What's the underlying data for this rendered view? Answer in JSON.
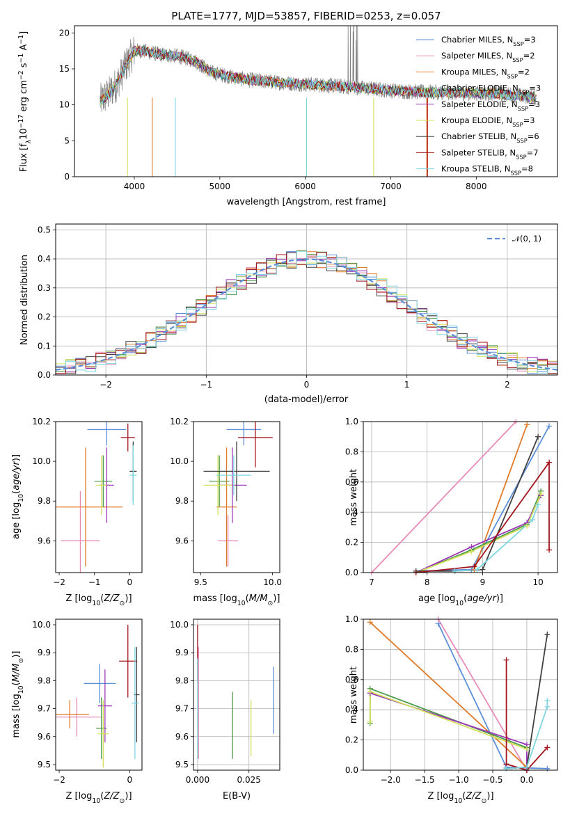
{
  "chart_data": [
    {
      "id": "spectrum",
      "type": "line",
      "title": "PLATE=1777, MJD=53857, FIBERID=0253, z=0.057",
      "xlabel": "wavelength [Angstrom, rest frame]",
      "ylabel": "Flux [f_λ10^-17 erg cm^-2 s^-1 A^-1]",
      "xlim": [
        3300,
        8950
      ],
      "ylim": [
        0,
        21
      ],
      "xticks": [
        4000,
        5000,
        6000,
        7000,
        8000
      ],
      "yticks": [
        0,
        5,
        10,
        15,
        20
      ],
      "grid": false,
      "legend": "top-right",
      "continuum_x": [
        3600,
        3700,
        3800,
        3900,
        4000,
        4100,
        4300,
        4500,
        4700,
        4900,
        5100,
        5300,
        5500,
        5800,
        6100,
        6400,
        6700,
        7000,
        7300,
        7600,
        7900,
        8200,
        8500,
        8700
      ],
      "continuum_y": [
        10.5,
        11.5,
        13.0,
        15.5,
        17.5,
        17.5,
        17.0,
        16.8,
        16.2,
        14.5,
        14.0,
        13.5,
        13.3,
        13.0,
        12.8,
        12.6,
        12.3,
        12.0,
        11.8,
        11.7,
        11.6,
        11.6,
        11.3,
        11.0
      ],
      "series": [
        {
          "name": "Chabrier MILES, N_SSP=3",
          "color": "#5b8fd9"
        },
        {
          "name": "Salpeter MILES, N_SSP=2",
          "color": "#e88bb8"
        },
        {
          "name": "Kroupa MILES, N_SSP=2",
          "color": "#e07b2a"
        },
        {
          "name": "Chabrier ELODIE, N_SSP=3",
          "color": "#4c9a4c"
        },
        {
          "name": "Salpeter ELODIE, N_SSP=3",
          "color": "#9b37b9"
        },
        {
          "name": "Kroupa ELODIE, N_SSP=3",
          "color": "#d3e05a"
        },
        {
          "name": "Chabrier STELIB, N_SSP=6",
          "color": "#404040"
        },
        {
          "name": "Salpeter STELIB, N_SSP=7",
          "color": "#a3141c"
        },
        {
          "name": "Kroupa STELIB, N_SSP=8",
          "color": "#7ed6e0"
        }
      ]
    },
    {
      "id": "residuals",
      "type": "bar",
      "xlabel": "(data-model)/error",
      "ylabel": "Normed distribution",
      "xlim": [
        -2.5,
        2.5
      ],
      "ylim": [
        0,
        0.52
      ],
      "xticks": [
        -2,
        -1,
        0,
        1,
        2
      ],
      "yticks": [
        0.0,
        0.1,
        0.2,
        0.3,
        0.4,
        0.5
      ],
      "grid": true,
      "legend": "top-right",
      "reference_label": "𝒩(0, 1)",
      "reference_color": "#5b8fd9",
      "bins_start": -2.5,
      "bin_width": 0.1
    },
    {
      "id": "age-vs-Z",
      "type": "scatter",
      "xlabel": "Z [log10(Z/Z⊙)]",
      "ylabel": "age  [log10(age/yr)]",
      "xlim": [
        -2.1,
        0.35
      ],
      "ylim": [
        9.44,
        10.2
      ],
      "xticks": [
        -2,
        -1,
        0
      ],
      "yticks": [
        9.6,
        9.8,
        10.0,
        10.2
      ],
      "points": [
        {
          "x": -0.65,
          "y": 10.16,
          "xerr": 0.55,
          "yerr": 0.08,
          "color": "#5b8fd9"
        },
        {
          "x": -1.4,
          "y": 9.6,
          "xerr": 0.55,
          "yerr": 0.25,
          "color": "#e88bb8"
        },
        {
          "x": -1.25,
          "y": 9.77,
          "xerr": 1.05,
          "yerr": 0.3,
          "color": "#e07b2a"
        },
        {
          "x": -0.75,
          "y": 9.9,
          "xerr": 0.25,
          "yerr": 0.13,
          "color": "#4c9a4c"
        },
        {
          "x": -0.65,
          "y": 9.88,
          "xerr": 0.2,
          "yerr": 0.19,
          "color": "#9b37b9"
        },
        {
          "x": -0.8,
          "y": 9.88,
          "xerr": 0.15,
          "yerr": 0.15,
          "color": "#d3e05a"
        },
        {
          "x": 0.1,
          "y": 9.95,
          "xerr": 0.1,
          "yerr": 0.15,
          "color": "#404040"
        },
        {
          "x": -0.05,
          "y": 10.12,
          "xerr": 0.2,
          "yerr": 0.07,
          "color": "#a3141c"
        },
        {
          "x": 0.1,
          "y": 9.93,
          "xerr": 0.1,
          "yerr": 0.15,
          "color": "#7ed6e0"
        }
      ]
    },
    {
      "id": "age-vs-mass",
      "type": "scatter",
      "xlabel": "mass [log10(M/M⊙)]",
      "ylabel": "",
      "xlim": [
        9.45,
        10.05
      ],
      "ylim": [
        9.44,
        10.2
      ],
      "xticks": [
        9.5,
        10.0
      ],
      "yticks": [
        9.6,
        9.8,
        10.0,
        10.2
      ],
      "points": [
        {
          "x": 9.8,
          "y": 10.16,
          "xerr": 0.12,
          "yerr": 0.08,
          "color": "#5b8fd9"
        },
        {
          "x": 9.69,
          "y": 9.6,
          "xerr": 0.07,
          "yerr": 0.13,
          "color": "#e88bb8"
        },
        {
          "x": 9.68,
          "y": 9.77,
          "xerr": 0.07,
          "yerr": 0.3,
          "color": "#e07b2a"
        },
        {
          "x": 9.63,
          "y": 9.9,
          "xerr": 0.07,
          "yerr": 0.13,
          "color": "#4c9a4c"
        },
        {
          "x": 9.72,
          "y": 9.88,
          "xerr": 0.1,
          "yerr": 0.19,
          "color": "#9b37b9"
        },
        {
          "x": 9.62,
          "y": 9.88,
          "xerr": 0.1,
          "yerr": 0.15,
          "color": "#d3e05a"
        },
        {
          "x": 9.75,
          "y": 9.95,
          "xerr": 0.23,
          "yerr": 0.15,
          "color": "#404040"
        },
        {
          "x": 9.88,
          "y": 10.12,
          "xerr": 0.12,
          "yerr": 0.15,
          "color": "#a3141c"
        },
        {
          "x": 9.73,
          "y": 9.93,
          "xerr": 0.12,
          "yerr": 0.1,
          "color": "#7ed6e0"
        }
      ]
    },
    {
      "id": "weight-vs-age",
      "type": "line",
      "xlabel": "age  [log10(age/yr)]",
      "ylabel": "mass weight",
      "xlim": [
        6.85,
        10.35
      ],
      "ylim": [
        0,
        1.0
      ],
      "xticks": [
        7,
        8,
        9,
        10
      ],
      "yticks": [
        0.0,
        0.2,
        0.4,
        0.6,
        0.8,
        1.0
      ],
      "grid": true,
      "series": [
        {
          "color": "#5b8fd9",
          "x": [
            7.8,
            8.8,
            10.2
          ],
          "y": [
            0.01,
            0.02,
            0.97
          ]
        },
        {
          "color": "#e88bb8",
          "x": [
            7.0,
            9.6
          ],
          "y": [
            0.0,
            1.0
          ]
        },
        {
          "color": "#e07b2a",
          "x": [
            8.85,
            9.8
          ],
          "y": [
            0.02,
            0.98
          ]
        },
        {
          "color": "#4c9a4c",
          "x": [
            7.8,
            8.8,
            9.8,
            10.05
          ],
          "y": [
            0.0,
            0.15,
            0.32,
            0.54
          ]
        },
        {
          "color": "#9b37b9",
          "x": [
            7.8,
            8.8,
            9.8,
            10.05
          ],
          "y": [
            0.0,
            0.17,
            0.33,
            0.51
          ]
        },
        {
          "color": "#d3e05a",
          "x": [
            7.8,
            8.8,
            9.8,
            10.05
          ],
          "y": [
            0.0,
            0.14,
            0.31,
            0.52
          ]
        },
        {
          "color": "#404040",
          "x": [
            7.8,
            8.5,
            9.0,
            10.0
          ],
          "y": [
            0.01,
            0.01,
            0.02,
            0.9
          ]
        },
        {
          "color": "#a3141c",
          "x": [
            7.8,
            8.85,
            10.2,
            10.2
          ],
          "y": [
            0.0,
            0.04,
            0.73,
            0.15
          ]
        },
        {
          "color": "#7ed6e0",
          "x": [
            8.5,
            8.9,
            9.9,
            10.0
          ],
          "y": [
            0.01,
            0.02,
            0.35,
            0.45
          ]
        }
      ]
    },
    {
      "id": "mass-vs-Z",
      "type": "scatter",
      "xlabel": "Z [log10(Z/Z⊙)]",
      "ylabel": "mass [log10(M/M⊙)]",
      "xlim": [
        -2.1,
        0.35
      ],
      "ylim": [
        9.48,
        10.02
      ],
      "xticks": [
        -2,
        0
      ],
      "yticks": [
        9.5,
        9.6,
        9.7,
        9.8,
        9.9,
        10.0
      ],
      "points": [
        {
          "x": -0.85,
          "y": 9.79,
          "xerr": 0.45,
          "yerr": 0.07,
          "color": "#5b8fd9"
        },
        {
          "x": -1.5,
          "y": 9.67,
          "xerr": 0.7,
          "yerr": 0.07,
          "color": "#e88bb8"
        },
        {
          "x": -1.7,
          "y": 9.68,
          "xerr": 0.55,
          "yerr": 0.05,
          "color": "#e07b2a"
        },
        {
          "x": -0.8,
          "y": 9.63,
          "xerr": 0.15,
          "yerr": 0.11,
          "color": "#4c9a4c"
        },
        {
          "x": -0.7,
          "y": 9.71,
          "xerr": 0.2,
          "yerr": 0.13,
          "color": "#9b37b9"
        },
        {
          "x": -0.75,
          "y": 9.61,
          "xerr": 0.15,
          "yerr": 0.12,
          "color": "#d3e05a"
        },
        {
          "x": 0.2,
          "y": 9.75,
          "xerr": 0.08,
          "yerr": 0.17,
          "color": "#404040"
        },
        {
          "x": -0.05,
          "y": 9.87,
          "xerr": 0.25,
          "yerr": 0.13,
          "color": "#a3141c"
        },
        {
          "x": 0.15,
          "y": 9.72,
          "xerr": 0.1,
          "yerr": 0.2,
          "color": "#7ed6e0"
        }
      ]
    },
    {
      "id": "mass-vs-ebv",
      "type": "scatter",
      "xlabel": "E(B-V)",
      "ylabel": "",
      "xlim": [
        -0.002,
        0.04
      ],
      "ylim": [
        9.48,
        10.02
      ],
      "xticks": [
        0.0,
        0.025
      ],
      "yticks": [
        9.5,
        9.6,
        9.7,
        9.8,
        9.9,
        10.0
      ],
      "points": [
        {
          "x": 0.037,
          "y": 9.73,
          "yerr": 0.12,
          "color": "#5b8fd9"
        },
        {
          "x": 0.0,
          "y": 9.9,
          "yerr": 0.1,
          "color": "#a3141c"
        },
        {
          "x": 0.0,
          "y": 9.7,
          "yerr": 0.18,
          "color": "#7ed6e0"
        },
        {
          "x": 0.0005,
          "y": 9.72,
          "yerr": 0.2,
          "color": "#e88bb8"
        },
        {
          "x": 0.017,
          "y": 9.64,
          "yerr": 0.12,
          "color": "#4c9a4c"
        },
        {
          "x": 0.026,
          "y": 9.63,
          "yerr": 0.1,
          "color": "#d3e05a"
        }
      ]
    },
    {
      "id": "weight-vs-Z",
      "type": "line",
      "xlabel": "Z [log10(Z/Z⊙)]",
      "ylabel": "mass weight",
      "xlim": [
        -2.4,
        0.45
      ],
      "ylim": [
        0,
        1.0
      ],
      "xticks": [
        -2.0,
        -1.5,
        -1.0,
        -0.5,
        0.0
      ],
      "yticks": [
        0.0,
        0.2,
        0.4,
        0.6,
        0.8,
        1.0
      ],
      "grid": true,
      "series": [
        {
          "color": "#5b8fd9",
          "x": [
            -1.3,
            -0.3,
            0.3
          ],
          "y": [
            0.97,
            0.02,
            0.01
          ]
        },
        {
          "color": "#e88bb8",
          "x": [
            -1.3,
            0.0
          ],
          "y": [
            1.0,
            0.0
          ]
        },
        {
          "color": "#e07b2a",
          "x": [
            -2.3,
            0.0
          ],
          "y": [
            0.98,
            0.02
          ]
        },
        {
          "color": "#4c9a4c",
          "x": [
            -2.3,
            -2.3,
            0.0,
            0.0
          ],
          "y": [
            0.31,
            0.54,
            0.15,
            0.0
          ]
        },
        {
          "color": "#9b37b9",
          "x": [
            -2.3,
            0.0,
            0.0
          ],
          "y": [
            0.51,
            0.17,
            0.0
          ]
        },
        {
          "color": "#d3e05a",
          "x": [
            -2.3,
            -2.3,
            0.0
          ],
          "y": [
            0.32,
            0.52,
            0.14
          ]
        },
        {
          "color": "#404040",
          "x": [
            -0.3,
            0.0,
            0.3
          ],
          "y": [
            0.01,
            0.02,
            0.9
          ]
        },
        {
          "color": "#a3141c",
          "x": [
            -0.3,
            -0.3,
            0.0,
            0.3
          ],
          "y": [
            0.73,
            0.04,
            0.0,
            0.15
          ]
        },
        {
          "color": "#7ed6e0",
          "x": [
            -0.3,
            0.0,
            0.3,
            0.3
          ],
          "y": [
            0.01,
            0.02,
            0.42,
            0.46
          ]
        }
      ]
    }
  ]
}
